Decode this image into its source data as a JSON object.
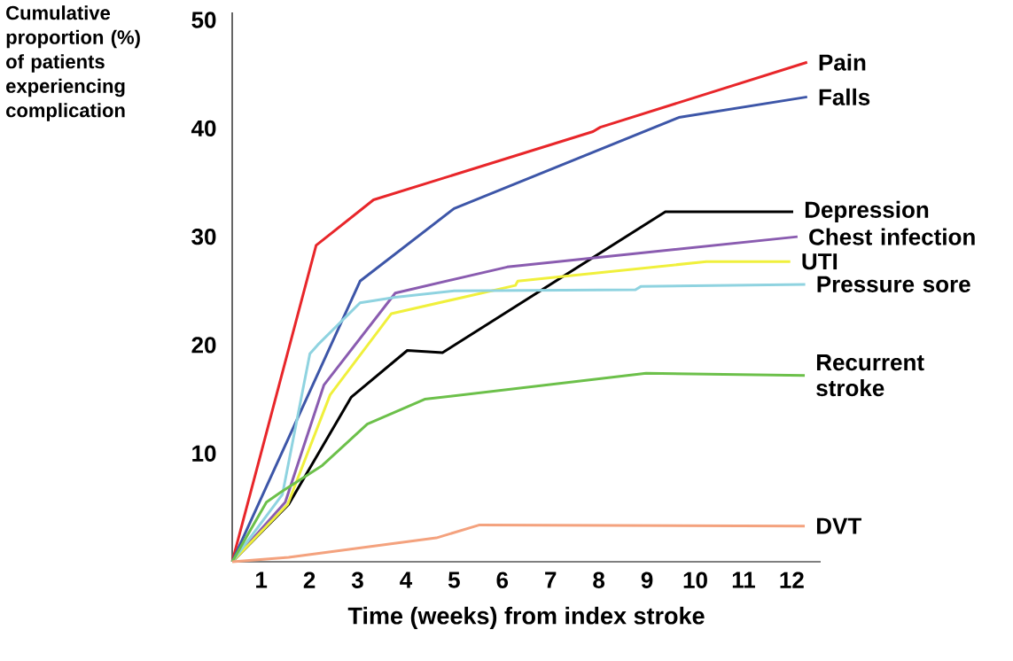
{
  "chart_data": {
    "type": "line",
    "xlabel": "Time (weeks) from index stroke",
    "ylabel": "Cumulative proportion (%) of patients experiencing complication",
    "xlim": [
      0.4,
      12.6
    ],
    "ylim": [
      0,
      50.7
    ],
    "xticks": [
      1,
      2,
      3,
      4,
      5,
      6,
      7,
      8,
      9,
      10,
      11,
      12
    ],
    "yticks": [
      10,
      20,
      30,
      40,
      50
    ],
    "legend": false,
    "marker": "none",
    "line_style": "solid",
    "series": [
      {
        "name": "Pain",
        "color": "#e8262a",
        "x": [
          0.4,
          2.14,
          3.33,
          7.88,
          8.03,
          12.32
        ],
        "values": [
          0,
          29.2,
          33.4,
          39.7,
          40.1,
          46.1
        ]
      },
      {
        "name": "Falls",
        "color": "#3d56a8",
        "x": [
          0.4,
          3.05,
          5.0,
          9.66,
          12.32
        ],
        "values": [
          0,
          25.9,
          32.6,
          41.0,
          42.9
        ]
      },
      {
        "name": "Depression",
        "color": "#000000",
        "x": [
          0.4,
          1.57,
          2.87,
          4.03,
          4.76,
          9.38,
          12.03
        ],
        "values": [
          0,
          5.3,
          15.2,
          19.5,
          19.3,
          32.3,
          32.3
        ]
      },
      {
        "name": "Chest infection",
        "color": "#8a5cb0",
        "x": [
          0.4,
          1.5,
          2.3,
          3.78,
          6.1,
          12.12
        ],
        "values": [
          0,
          5.5,
          16.3,
          24.8,
          27.2,
          30.0
        ]
      },
      {
        "name": "UTI",
        "color": "#f0f03c",
        "x": [
          0.4,
          1.55,
          2.43,
          3.7,
          6.27,
          6.32,
          10.23,
          11.97
        ],
        "values": [
          0,
          5.3,
          15.4,
          22.9,
          25.5,
          25.9,
          27.7,
          27.7
        ]
      },
      {
        "name": "Pressure sore",
        "color": "#8fd3e0",
        "x": [
          0.4,
          1.44,
          2.01,
          2.17,
          3.05,
          3.78,
          5.0,
          8.76,
          8.87,
          12.28
        ],
        "values": [
          0,
          6.2,
          19.2,
          20.0,
          23.9,
          24.4,
          25.0,
          25.1,
          25.4,
          25.6
        ]
      },
      {
        "name": "Recurrent stroke",
        "color": "#6cc04a",
        "x": [
          0.4,
          1.11,
          1.4,
          2.27,
          3.2,
          4.39,
          8.98,
          12.27
        ],
        "values": [
          0,
          5.5,
          6.4,
          8.9,
          12.7,
          15.0,
          17.4,
          17.2
        ]
      },
      {
        "name": "DVT",
        "color": "#f4a27e",
        "x": [
          0.4,
          1.57,
          4.63,
          5.53,
          12.27
        ],
        "values": [
          0,
          0.4,
          2.2,
          3.4,
          3.3
        ]
      }
    ]
  }
}
